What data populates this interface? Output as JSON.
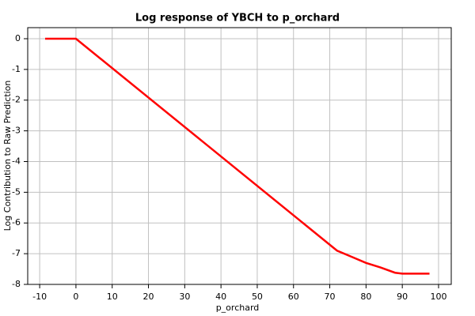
{
  "chart_data": {
    "type": "line",
    "title": "Log response of YBCH to p_orchard",
    "x_label": "p_orchard",
    "y_label": "Log Contribution to Raw Prediction",
    "x": [
      -8.5,
      0,
      72,
      76,
      80,
      84,
      88,
      90,
      97.5
    ],
    "series": [
      {
        "name": "YBCH",
        "color": "#ff0000",
        "values": [
          0,
          0,
          -6.9,
          -7.1,
          -7.3,
          -7.45,
          -7.62,
          -7.65,
          -7.65
        ]
      }
    ],
    "xlim": [
      -13.3,
      103.5
    ],
    "ylim": [
      -8,
      0.36
    ],
    "xticks": [
      -10,
      0,
      10,
      20,
      30,
      40,
      50,
      60,
      70,
      80,
      90,
      100
    ],
    "yticks": [
      -8,
      -7,
      -6,
      -5,
      -4,
      -3,
      -2,
      -1,
      0
    ],
    "grid": true
  }
}
